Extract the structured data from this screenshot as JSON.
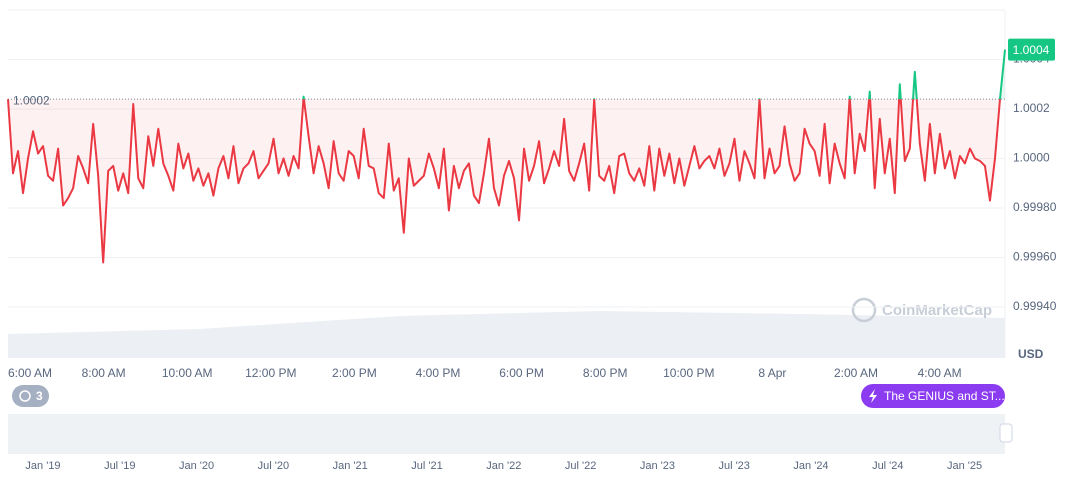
{
  "chart_data": {
    "type": "line",
    "series": [
      {
        "color": "#ea3943",
        "up_color": "#16c784",
        "values": [
          1.00024,
          0.99994,
          1.00003,
          0.99986,
          1.0,
          1.00011,
          1.00002,
          1.00005,
          0.99993,
          0.99991,
          1.00004,
          0.99981,
          0.99984,
          0.99988,
          1.00001,
          0.99996,
          0.9999,
          1.00014,
          0.99993,
          0.99958,
          0.99995,
          0.99997,
          0.99987,
          0.99994,
          0.99986,
          1.00022,
          0.99992,
          0.99988,
          1.00009,
          0.99997,
          1.00012,
          0.99998,
          0.99993,
          0.99987,
          1.00006,
          0.99996,
          1.00002,
          0.99991,
          0.99996,
          0.99989,
          0.99994,
          0.99985,
          0.99996,
          1.00001,
          0.99992,
          1.00005,
          0.9999,
          0.99996,
          0.99998,
          1.00003,
          0.99992,
          0.99995,
          0.99998,
          1.00008,
          0.99994,
          1.0,
          0.99993,
          1.00001,
          0.99996,
          1.00025,
          1.00009,
          0.99994,
          1.00005,
          0.99998,
          0.99988,
          1.00007,
          0.99994,
          0.99991,
          1.00003,
          1.00001,
          0.99992,
          1.00012,
          0.99997,
          0.99996,
          0.99986,
          0.99984,
          1.00006,
          0.99987,
          0.99992,
          0.9997,
          1.0,
          0.99989,
          0.99991,
          0.99993,
          1.00002,
          0.99996,
          0.99988,
          1.00004,
          0.99979,
          0.99997,
          0.99988,
          0.99995,
          0.99998,
          0.99985,
          0.99982,
          0.99994,
          1.00008,
          0.99988,
          0.99981,
          0.99993,
          0.99999,
          0.99992,
          0.99975,
          1.00004,
          0.99991,
          0.99997,
          1.00007,
          0.9999,
          0.99996,
          1.00003,
          0.99997,
          1.00016,
          0.99995,
          0.99991,
          0.99998,
          1.00006,
          0.99987,
          1.00024,
          0.99993,
          0.99991,
          0.99997,
          0.99986,
          1.00001,
          1.00002,
          0.99994,
          0.99991,
          0.99996,
          0.99989,
          1.00005,
          0.99987,
          1.00004,
          0.99993,
          1.00002,
          0.9999,
          1.0,
          0.99989,
          0.99997,
          1.00005,
          0.99996,
          0.99999,
          1.00001,
          0.99996,
          1.00004,
          0.99993,
          0.99998,
          1.00008,
          0.99991,
          1.00003,
          0.99998,
          0.99992,
          1.00024,
          0.99992,
          1.00004,
          0.99994,
          0.99997,
          1.00013,
          0.99998,
          0.99991,
          0.99994,
          1.00012,
          1.00006,
          1.00003,
          0.99993,
          1.00014,
          0.9999,
          1.00006,
          0.99998,
          0.99992,
          1.00025,
          0.99994,
          1.0001,
          1.00003,
          1.00027,
          0.99988,
          1.00016,
          0.99994,
          1.00008,
          0.99986,
          1.0003,
          0.99999,
          1.00004,
          1.00035,
          1.00006,
          0.99991,
          1.00014,
          0.99994,
          1.0001,
          0.99996,
          1.00003,
          0.99992,
          1.00001,
          0.99998,
          1.00004,
          1.0,
          0.99999,
          0.99997,
          0.99983,
          1.0,
          1.00024,
          1.00044
        ]
      }
    ],
    "ylim": [
      0.9992,
      1.0006
    ],
    "yticks": [
      {
        "value": 0.9994,
        "label": "0.99940"
      },
      {
        "value": 0.9996,
        "label": "0.99960"
      },
      {
        "value": 0.9998,
        "label": "0.99980"
      },
      {
        "value": 1.0,
        "label": "1.0000"
      },
      1.0002,
      1.0004
    ],
    "grid": true,
    "reference": {
      "value": 1.00024,
      "label": "1.0002"
    },
    "price_tag": "1.0004",
    "currency": "USD",
    "x_labels": [
      "6:00 AM",
      "8:00 AM",
      "10:00 AM",
      "12:00 PM",
      "2:00 PM",
      "4:00 PM",
      "6:00 PM",
      "8:00 PM",
      "10:00 PM",
      "8 Apr",
      "2:00 AM",
      "4:00 AM"
    ],
    "watermark": "CoinMarketCap"
  },
  "navigator": {
    "labels": [
      "Jan '19",
      "Jul '19",
      "Jan '20",
      "Jul '20",
      "Jan '21",
      "Jul '21",
      "Jan '22",
      "Jul '22",
      "Jan '23",
      "Jul '23",
      "Jan '24",
      "Jul '24",
      "Jan '25"
    ]
  },
  "history_badge": "3",
  "news_button": "The GENIUS and ST..."
}
